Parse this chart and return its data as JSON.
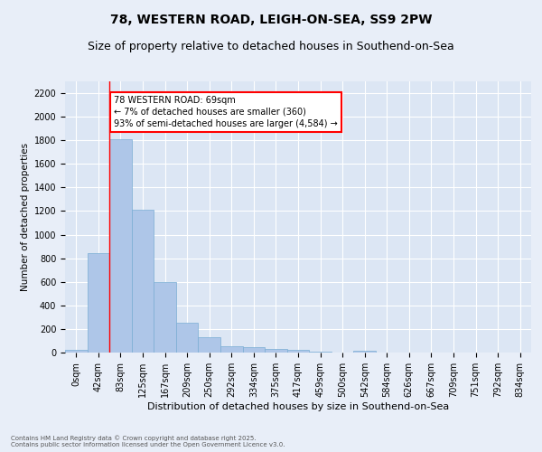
{
  "title1": "78, WESTERN ROAD, LEIGH-ON-SEA, SS9 2PW",
  "title2": "Size of property relative to detached houses in Southend-on-Sea",
  "xlabel": "Distribution of detached houses by size in Southend-on-Sea",
  "ylabel": "Number of detached properties",
  "footer1": "Contains HM Land Registry data © Crown copyright and database right 2025.",
  "footer2": "Contains public sector information licensed under the Open Government Licence v3.0.",
  "bar_labels": [
    "0sqm",
    "42sqm",
    "83sqm",
    "125sqm",
    "167sqm",
    "209sqm",
    "250sqm",
    "292sqm",
    "334sqm",
    "375sqm",
    "417sqm",
    "459sqm",
    "500sqm",
    "542sqm",
    "584sqm",
    "626sqm",
    "667sqm",
    "709sqm",
    "751sqm",
    "792sqm",
    "834sqm"
  ],
  "bar_values": [
    25,
    845,
    1810,
    1210,
    600,
    255,
    130,
    52,
    45,
    33,
    22,
    8,
    0,
    15,
    0,
    0,
    0,
    0,
    0,
    0,
    0
  ],
  "bar_color": "#aec6e8",
  "bar_edge_color": "#7aadd4",
  "ylim": [
    0,
    2300
  ],
  "yticks": [
    0,
    200,
    400,
    600,
    800,
    1000,
    1200,
    1400,
    1600,
    1800,
    2000,
    2200
  ],
  "vline_x": 1.5,
  "vline_color": "red",
  "annotation_text": "78 WESTERN ROAD: 69sqm\n← 7% of detached houses are smaller (360)\n93% of semi-detached houses are larger (4,584) →",
  "annotation_box_color": "white",
  "annotation_border_color": "red",
  "bg_color": "#e8eef8",
  "plot_bg_color": "#dce6f4",
  "grid_color": "white",
  "title1_fontsize": 10,
  "title2_fontsize": 9,
  "ylabel_fontsize": 7.5,
  "xlabel_fontsize": 8,
  "tick_fontsize": 7,
  "footer_fontsize": 5,
  "annot_fontsize": 7
}
